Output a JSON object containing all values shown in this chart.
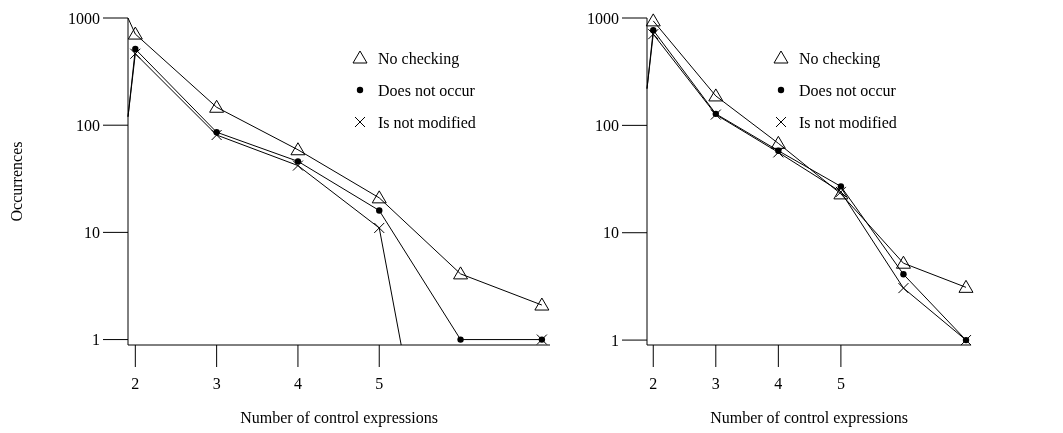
{
  "chart_data": [
    {
      "type": "line",
      "xlabel": "Number of control expressions",
      "ylabel": "Occurrences",
      "log": true,
      "grid": false,
      "legend": "top right",
      "xlim": [
        1.91,
        7.1
      ],
      "xticks": [
        2,
        3,
        4,
        5
      ],
      "ylim": [
        0.89,
        1000
      ],
      "yticks": [
        1,
        10,
        100,
        1000
      ],
      "x": [
        2,
        3,
        4,
        5,
        6,
        7
      ],
      "series": [
        {
          "name": "No checking",
          "color": "#000000",
          "marker": "triangle",
          "values": [
            708,
            147,
            59,
            21,
            4.1,
            2.1
          ]
        },
        {
          "name": "Does not occur",
          "color": "#000000",
          "marker": "circle",
          "values": [
            513,
            86,
            46,
            16,
            1,
            1
          ]
        },
        {
          "name": "Is not modified",
          "color": "#000000",
          "marker": "cross",
          "values": [
            464,
            81,
            42,
            11,
            null,
            1
          ]
        },
        {
          "color": "#000000",
          "marker": "none",
          "x": [
            1.91,
            2
          ],
          "values": [
            1000,
            708
          ]
        },
        {
          "color": "#000000",
          "marker": "none",
          "x": [
            1.91,
            2
          ],
          "values": [
            120,
            513
          ]
        },
        {
          "color": "#000000",
          "marker": "none",
          "x": [
            1.91,
            2
          ],
          "values": [
            120,
            464
          ]
        },
        {
          "color": "#000000",
          "marker": "none",
          "x": [
            5,
            5.27
          ],
          "values": [
            11,
            0.89
          ]
        }
      ]
    },
    {
      "type": "line",
      "xlabel": "Number of control expressions",
      "log": true,
      "grid": false,
      "legend": "top right",
      "xlim": [
        1.9,
        7.08
      ],
      "xticks": [
        2,
        3,
        4,
        5
      ],
      "ylim": [
        0.9,
        1000
      ],
      "yticks": [
        1,
        10,
        100,
        1000
      ],
      "x": [
        2,
        3,
        4,
        5,
        6,
        7
      ],
      "series": [
        {
          "name": "No checking",
          "color": "#000000",
          "marker": "triangle",
          "values": [
            940,
            188,
            68,
            23,
            5.2,
            3.1
          ]
        },
        {
          "name": "Does not occur",
          "color": "#000000",
          "marker": "circle",
          "values": [
            770,
            128,
            58,
            27,
            4.1,
            1
          ]
        },
        {
          "name": "Is not modified",
          "color": "#000000",
          "marker": "cross",
          "values": [
            707,
            126,
            56,
            24,
            3.05,
            1
          ]
        },
        {
          "color": "#000000",
          "marker": "none",
          "x": [
            1.9,
            2
          ],
          "values": [
            220,
            770
          ]
        },
        {
          "color": "#000000",
          "marker": "none",
          "x": [
            1.9,
            2
          ],
          "values": [
            220,
            707
          ]
        }
      ]
    }
  ]
}
